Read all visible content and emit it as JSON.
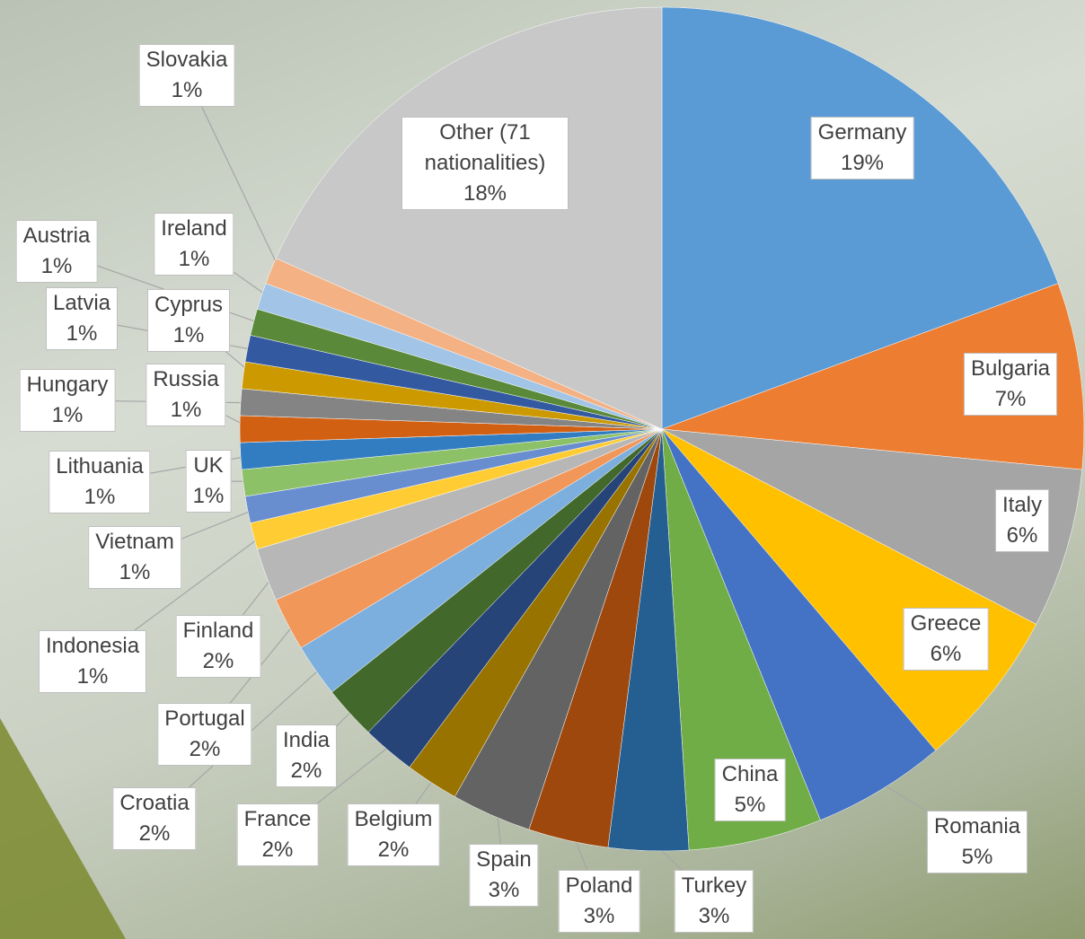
{
  "chart_data": {
    "type": "pie",
    "categories": [
      "Germany",
      "Bulgaria",
      "Italy",
      "Greece",
      "Romania",
      "China",
      "Turkey",
      "Poland",
      "Spain",
      "Belgium",
      "France",
      "India",
      "Croatia",
      "Portugal",
      "Finland",
      "Indonesia",
      "Vietnam",
      "UK",
      "Lithuania",
      "Russia",
      "Hungary",
      "Cyprus",
      "Latvia",
      "Austria",
      "Ireland",
      "Slovakia",
      "Other (71 nationalities)"
    ],
    "values": [
      19,
      7,
      6,
      6,
      5,
      5,
      3,
      3,
      3,
      2,
      2,
      2,
      2,
      2,
      2,
      1,
      1,
      1,
      1,
      1,
      1,
      1,
      1,
      1,
      1,
      1,
      18
    ],
    "value_labels": [
      "19%",
      "7%",
      "6%",
      "6%",
      "5%",
      "5%",
      "3%",
      "3%",
      "3%",
      "2%",
      "2%",
      "2%",
      "2%",
      "2%",
      "2%",
      "1%",
      "1%",
      "1%",
      "1%",
      "1%",
      "1%",
      "1%",
      "1%",
      "1%",
      "1%",
      "1%",
      "18%"
    ],
    "colors": [
      "#5b9bd5",
      "#ed7d31",
      "#a5a5a5",
      "#ffc000",
      "#4472c4",
      "#70ad47",
      "#255e91",
      "#9e480e",
      "#636363",
      "#997300",
      "#264478",
      "#43682b",
      "#7cafdd",
      "#f1975a",
      "#b7b7b7",
      "#ffcd33",
      "#698ed0",
      "#8cc168",
      "#327dc2",
      "#d26012",
      "#848484",
      "#cc9a00",
      "#335aa1",
      "#5a8a39",
      "#a1c4e7",
      "#f4b183",
      "#c8c8c8"
    ]
  }
}
